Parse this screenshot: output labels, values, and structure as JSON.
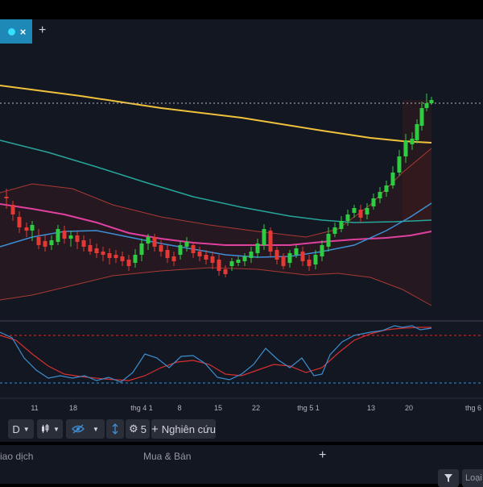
{
  "tab": {
    "close_label": "×",
    "add_label": "+"
  },
  "chart": {
    "x_ticks": [
      "11",
      "18",
      "thg 4 1",
      "8",
      "15",
      "22",
      "thg 5 1",
      "13",
      "20",
      "thg 6"
    ],
    "colors": {
      "up": "#2ecc40",
      "down": "#e53935",
      "ma_yellow": "#f0c23c",
      "ma_green": "#26a69a",
      "ma_pink": "#e040a0",
      "ma_blue": "#3d8fd6",
      "bb": "#a83a34",
      "stoch_k": "#3c8ecf",
      "stoch_d": "#d63030"
    }
  },
  "toolbar": {
    "interval": "D",
    "indicator_count": "5",
    "research_label": "Nghiên cứu",
    "research_prefix": "+"
  },
  "bottom": {
    "tab_trade": "iao dịch",
    "tab_buysell": "Mua & Bán",
    "add_label": "+",
    "type_label": "Loại"
  }
}
